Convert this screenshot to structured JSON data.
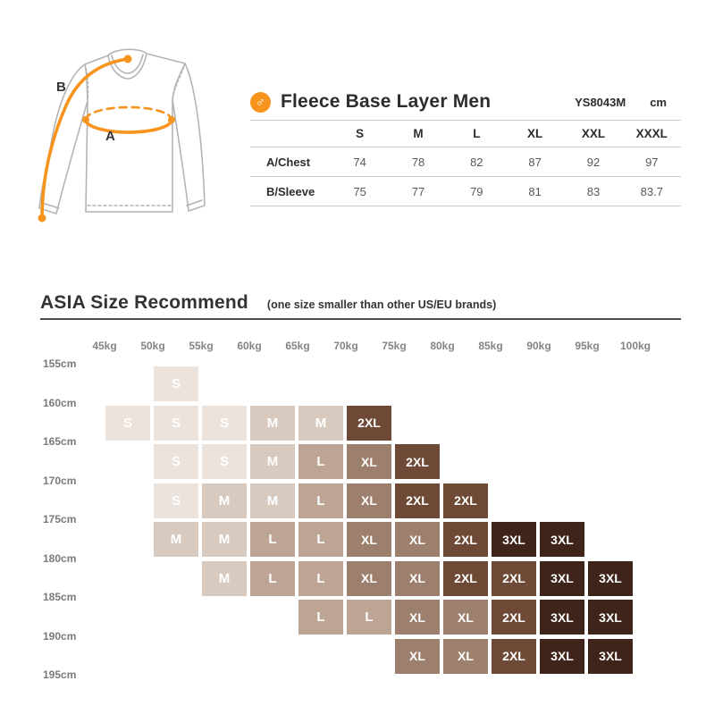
{
  "chart_data": [
    {
      "type": "table",
      "title": "Fleece Base Layer Men",
      "model": "YS8043M",
      "unit": "cm",
      "columns": [
        "S",
        "M",
        "L",
        "XL",
        "XXL",
        "XXXL"
      ],
      "rows": [
        {
          "label": "A/Chest",
          "values": [
            74,
            78,
            82,
            87,
            92,
            97
          ]
        },
        {
          "label": "B/Sleeve",
          "values": [
            75,
            77,
            79,
            81,
            83,
            83.7
          ]
        }
      ]
    },
    {
      "type": "heatmap",
      "title": "ASIA Size Recommend",
      "subtitle": "(one size smaller than other US/EU brands)",
      "x_labels": [
        "45kg",
        "50kg",
        "55kg",
        "60kg",
        "65kg",
        "70kg",
        "75kg",
        "80kg",
        "85kg",
        "90kg",
        "95kg",
        "100kg"
      ],
      "y_labels": [
        "155cm",
        "160cm",
        "165cm",
        "170cm",
        "175cm",
        "180cm",
        "185cm",
        "190cm",
        "195cm"
      ],
      "axis_note": "labels mark gridlines; each cell spans the interval between adjacent weight and height labels",
      "grid": [
        [
          "",
          "S",
          "",
          "",
          "",
          "",
          "",
          "",
          "",
          "",
          ""
        ],
        [
          "S",
          "S",
          "S",
          "M",
          "M",
          "2XL",
          "",
          "",
          "",
          "",
          ""
        ],
        [
          "",
          "S",
          "S",
          "M",
          "L",
          "XL",
          "2XL",
          "",
          "",
          "",
          ""
        ],
        [
          "",
          "S",
          "M",
          "M",
          "L",
          "XL",
          "2XL",
          "2XL",
          "",
          "",
          ""
        ],
        [
          "",
          "M",
          "M",
          "L",
          "L",
          "XL",
          "XL",
          "2XL",
          "3XL",
          "3XL",
          ""
        ],
        [
          "",
          "",
          "M",
          "L",
          "L",
          "XL",
          "XL",
          "2XL",
          "2XL",
          "3XL",
          "3XL"
        ],
        [
          "",
          "",
          "",
          "",
          "L",
          "L",
          "XL",
          "XL",
          "2XL",
          "3XL",
          "3XL"
        ],
        [
          "",
          "",
          "",
          "",
          "",
          "",
          "XL",
          "XL",
          "2XL",
          "3XL",
          "3XL"
        ]
      ],
      "size_colors": {
        "S": "#ece3dc",
        "M": "#d8cabf",
        "L": "#bda494",
        "XL": "#9d7f6d",
        "2XL": "#6d4936",
        "3XL": "#3f2519"
      },
      "legend_position": "none"
    }
  ],
  "diagram": {
    "male_symbol": "♂",
    "measure_labels": {
      "sleeve": "B",
      "chest": "A"
    },
    "accent": "#f7941e",
    "outline": "#b4b4b4"
  }
}
